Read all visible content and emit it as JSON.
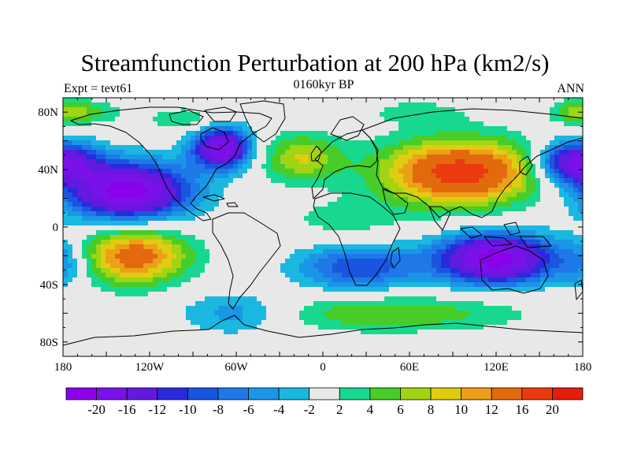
{
  "title": "Streamfunction Perturbation at 200 hPa (km2/s)",
  "left_label": "Expt = tevt61",
  "center_label": "0160kyr BP",
  "right_label": "ANN",
  "map": {
    "projection": "cylindrical-equidistant",
    "lon_range": [
      -180,
      180
    ],
    "lat_range": [
      -90,
      90
    ],
    "x_ticks": [
      {
        "lon": -180,
        "label": "180"
      },
      {
        "lon": -120,
        "label": "120W"
      },
      {
        "lon": -60,
        "label": "60W"
      },
      {
        "lon": 0,
        "label": "0"
      },
      {
        "lon": 60,
        "label": "60E"
      },
      {
        "lon": 120,
        "label": "120E"
      },
      {
        "lon": 180,
        "label": "180"
      }
    ],
    "y_ticks": [
      {
        "lat": 80,
        "label": "80N"
      },
      {
        "lat": 40,
        "label": "40N"
      },
      {
        "lat": 0,
        "label": "0"
      },
      {
        "lat": -40,
        "label": "40S"
      },
      {
        "lat": -80,
        "label": "80S"
      }
    ],
    "field_centers": [
      {
        "lon": -135,
        "lat": 25,
        "value": -22,
        "sx": 30,
        "sy": 14
      },
      {
        "lon": -175,
        "lat": 45,
        "value": -12,
        "sx": 16,
        "sy": 10
      },
      {
        "lon": -70,
        "lat": 55,
        "value": -20,
        "sx": 14,
        "sy": 10
      },
      {
        "lon": -130,
        "lat": -20,
        "value": 14,
        "sx": 26,
        "sy": 14
      },
      {
        "lon": -60,
        "lat": -60,
        "value": -6,
        "sx": 28,
        "sy": 10
      },
      {
        "lon": 95,
        "lat": 38,
        "value": 18,
        "sx": 38,
        "sy": 16
      },
      {
        "lon": -15,
        "lat": 48,
        "value": 8,
        "sx": 20,
        "sy": 12
      },
      {
        "lon": 15,
        "lat": 5,
        "value": 3,
        "sx": 30,
        "sy": 10
      },
      {
        "lon": 120,
        "lat": -22,
        "value": -22,
        "sx": 28,
        "sy": 12
      },
      {
        "lon": 25,
        "lat": -28,
        "value": -10,
        "sx": 30,
        "sy": 11
      },
      {
        "lon": 165,
        "lat": 45,
        "value": -10,
        "sx": 14,
        "sy": 10
      },
      {
        "lon": 45,
        "lat": -60,
        "value": 6,
        "sx": 65,
        "sy": 9
      },
      {
        "lon": -165,
        "lat": 80,
        "value": 5,
        "sx": 18,
        "sy": 6
      },
      {
        "lon": 175,
        "lat": 80,
        "value": 5,
        "sx": 12,
        "sy": 6
      },
      {
        "lon": 180,
        "lat": -25,
        "value": -6,
        "sx": 12,
        "sy": 12
      },
      {
        "lon": -95,
        "lat": 75,
        "value": 4,
        "sx": 18,
        "sy": 6
      },
      {
        "lon": 65,
        "lat": 80,
        "value": 3,
        "sx": 25,
        "sy": 6
      }
    ]
  },
  "colorbar": {
    "levels": [
      "-20",
      "-16",
      "-12",
      "-10",
      "-8",
      "-6",
      "-4",
      "-2",
      "2",
      "4",
      "6",
      "8",
      "10",
      "12",
      "16",
      "20"
    ],
    "level_values": [
      -20,
      -16,
      -12,
      -10,
      -8,
      -6,
      -4,
      -2,
      2,
      4,
      6,
      8,
      10,
      12,
      16,
      20
    ],
    "colors": [
      "#8a00ea",
      "#7a10ea",
      "#6418e0",
      "#2a2adc",
      "#1a55e0",
      "#1e78e8",
      "#1a96e6",
      "#1ab8e0",
      "#e8e8e8",
      "#18d890",
      "#48cc28",
      "#a0d414",
      "#e0cc10",
      "#eca018",
      "#e26a0c",
      "#ea3a0e",
      "#e41e0a"
    ]
  }
}
